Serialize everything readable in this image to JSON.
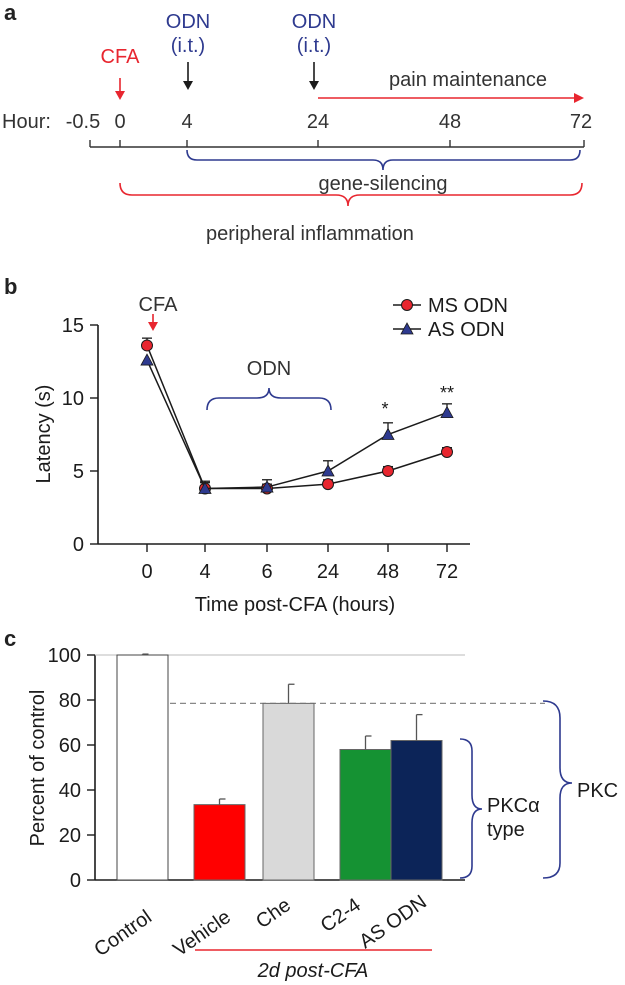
{
  "colors": {
    "red": "#e8262f",
    "blue": "#2e3a8f",
    "dark": "#1b1b1b",
    "gray_text": "#333333",
    "control_fill": "#ffffff",
    "vehicle_fill": "#ff0000",
    "che_fill": "#d9d9d9",
    "c24_fill": "#159233",
    "asodn_fill": "#0c2458"
  },
  "panel_a": {
    "letter": "a",
    "cfa_label": "CFA",
    "odn1_label": "ODN",
    "odn1_sub": "(i.t.)",
    "odn2_label": "ODN",
    "odn2_sub": "(i.t.)",
    "pain_label": "pain maintenance",
    "hour_label": "Hour:",
    "hour_ticks": [
      "-0.5",
      "0",
      "4",
      "24",
      "48",
      "72"
    ],
    "gene_label": "gene-silencing",
    "inflam_label": "peripheral inflammation"
  },
  "panel_b": {
    "letter": "b",
    "cfa_label": "CFA",
    "odn_label": "ODN",
    "sig_48": "*",
    "sig_72": "**"
  },
  "panel_c": {
    "letter": "c",
    "pkca_label_1": "PKCα",
    "pkca_label_2": "type",
    "pkc_label": "PKC",
    "group_label": "2d post-CFA"
  },
  "chart_data": [
    {
      "type": "line",
      "title": "",
      "xlabel": "Time post-CFA (hours)",
      "ylabel": "Latency (s)",
      "categories": [
        "0",
        "4",
        "6",
        "24",
        "48",
        "72"
      ],
      "ylim": [
        0,
        15
      ],
      "yticks": [
        "0",
        "5",
        "10",
        "15"
      ],
      "legend_position": "top-right",
      "series": [
        {
          "name": "MS ODN",
          "marker": "circle",
          "values": [
            13.6,
            3.8,
            3.8,
            4.1,
            5.0,
            6.3
          ],
          "errors": [
            0.5,
            0.4,
            0.3,
            0.3,
            0.3,
            0.3
          ]
        },
        {
          "name": "AS ODN",
          "marker": "triangle",
          "values": [
            12.6,
            3.8,
            3.9,
            5.0,
            7.5,
            9.0
          ],
          "errors": [
            0.0,
            0.5,
            0.5,
            0.7,
            0.8,
            0.6
          ]
        }
      ]
    },
    {
      "type": "bar",
      "title": "",
      "xlabel": "",
      "ylabel": "Percent of control",
      "categories": [
        "Control",
        "Vehicle",
        "Che",
        "C2-4",
        "AS ODN"
      ],
      "values": [
        100,
        33.5,
        78.5,
        58,
        62
      ],
      "errors": [
        0.4,
        2.5,
        8.5,
        6,
        11.5
      ],
      "ylim": [
        0,
        100
      ],
      "yticks": [
        "0",
        "20",
        "40",
        "60",
        "80",
        "100"
      ],
      "reference_line": 78.5
    }
  ]
}
